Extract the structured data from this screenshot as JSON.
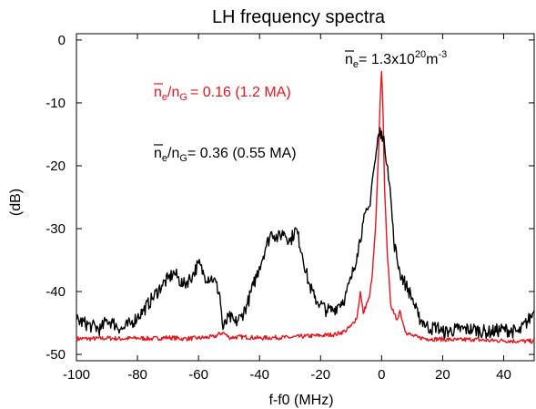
{
  "chart_data": {
    "type": "line",
    "title": "LH frequency spectra",
    "xlabel": "f-f0 (MHz)",
    "ylabel": "(dB)",
    "xlim": [
      -100,
      50
    ],
    "ylim": [
      -51,
      1
    ],
    "xticks": [
      -100,
      -80,
      -60,
      -40,
      -20,
      0,
      20,
      40
    ],
    "xtick_labels": [
      "-100",
      "-80",
      "-60",
      "-40",
      "-20",
      "0",
      "20",
      "40"
    ],
    "yticks": [
      0,
      -10,
      -20,
      -30,
      -40,
      -50
    ],
    "ytick_labels": [
      "0",
      "-10",
      "-20",
      "-30",
      "-40",
      "-50"
    ],
    "grid": false,
    "annotations": {
      "density": {
        "prefix": "n",
        "sub": "e",
        "mid": "= 1.3x10",
        "sup1": "20",
        "unit": "m",
        "sup2": "-3",
        "color": "#000000"
      },
      "red_label": {
        "prefix": "n",
        "sub1": "e",
        "slash": "/n",
        "sub2": "G",
        "rest": "= 0.16 (1.2 MA)",
        "color": "#e8141c"
      },
      "black_label": {
        "prefix": "n",
        "sub1": "e",
        "slash": "/n",
        "sub2": "G",
        "rest": "= 0.36 (0.55 MA)",
        "color": "#000000"
      }
    },
    "series": [
      {
        "color": "#e8141c",
        "x": [
          -100,
          -95,
          -90,
          -85,
          -80,
          -75,
          -70,
          -65,
          -60,
          -55,
          -52,
          -50,
          -45,
          -40,
          -35,
          -30,
          -25,
          -20,
          -15,
          -12,
          -10,
          -8,
          -7,
          -6,
          -5,
          -4,
          -3,
          -2,
          -1,
          -0.5,
          0,
          0.5,
          1,
          2,
          3,
          4,
          5,
          6,
          7,
          8,
          10,
          12,
          15,
          20,
          25,
          30,
          35,
          40,
          45,
          50
        ],
        "y": [
          -47.5,
          -47.5,
          -47.4,
          -47.5,
          -47.4,
          -47.5,
          -47.3,
          -47.5,
          -47.4,
          -47.2,
          -46.5,
          -47.3,
          -47.2,
          -47.4,
          -47.3,
          -47.3,
          -47.1,
          -47.0,
          -46.8,
          -46.3,
          -45.5,
          -44.0,
          -40.0,
          -43.5,
          -42.0,
          -41.0,
          -37.0,
          -30.0,
          -18.0,
          -10.0,
          -5.0,
          -12.0,
          -24.0,
          -35.0,
          -42.0,
          -43.5,
          -44.5,
          -43.0,
          -45.0,
          -46.5,
          -47.0,
          -47.3,
          -47.5,
          -47.6,
          -47.7,
          -47.6,
          -47.8,
          -47.8,
          -47.9,
          -47.9
        ]
      },
      {
        "color": "#000000",
        "x": [
          -100,
          -95,
          -92,
          -90,
          -88,
          -85,
          -82,
          -80,
          -78,
          -75,
          -72,
          -70,
          -68,
          -65,
          -62,
          -60,
          -58,
          -55,
          -53,
          -52,
          -50,
          -48,
          -46,
          -44,
          -42,
          -40,
          -38,
          -36,
          -34,
          -32,
          -30,
          -28,
          -26,
          -24,
          -22,
          -20,
          -18,
          -16,
          -14,
          -12,
          -10,
          -8,
          -6,
          -4,
          -3,
          -2,
          -1,
          0,
          1,
          2,
          3,
          4,
          6,
          8,
          10,
          12,
          14,
          16,
          18,
          20,
          25,
          30,
          35,
          40,
          45,
          49,
          50
        ],
        "y": [
          -44.5,
          -45.5,
          -46.0,
          -44.5,
          -45.0,
          -46.0,
          -45.0,
          -44.0,
          -43.0,
          -41.0,
          -39.0,
          -38.0,
          -37.0,
          -39.0,
          -37.5,
          -35.5,
          -37.5,
          -38.0,
          -40.5,
          -46.0,
          -44.0,
          -45.0,
          -44.0,
          -42.0,
          -39.0,
          -36.0,
          -33.0,
          -30.5,
          -31.5,
          -30.5,
          -32.0,
          -30.0,
          -34.0,
          -38.5,
          -41.0,
          -42.0,
          -43.0,
          -43.0,
          -42.0,
          -41.0,
          -38.0,
          -34.0,
          -29.0,
          -26.5,
          -22.0,
          -19.0,
          -15.0,
          -14.5,
          -17.0,
          -20.0,
          -25.0,
          -32.0,
          -37.0,
          -39.0,
          -41.0,
          -44.0,
          -45.0,
          -46.0,
          -45.5,
          -46.5,
          -46.0,
          -46.0,
          -46.5,
          -46.0,
          -46.5,
          -44.0,
          -43.0
        ]
      }
    ]
  }
}
